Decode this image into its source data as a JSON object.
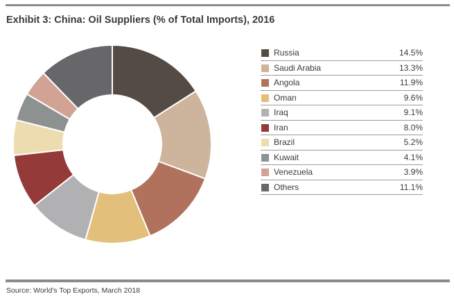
{
  "title": "Exhibit 3: China: Oil Suppliers (% of Total Imports), 2016",
  "source": "Source: World's Top Exports, March 2018",
  "chart_data": {
    "type": "pie",
    "donut": true,
    "title": "Exhibit 3: China: Oil Suppliers (% of Total Imports), 2016",
    "legend_position": "right",
    "categories": [
      "Russia",
      "Saudi Arabia",
      "Angola",
      "Oman",
      "Iraq",
      "Iran",
      "Brazil",
      "Kuwait",
      "Venezuela",
      "Others"
    ],
    "values": [
      14.5,
      13.3,
      11.9,
      9.6,
      9.1,
      8.0,
      5.2,
      4.1,
      3.9,
      11.1
    ],
    "value_labels": [
      "14.5%",
      "13.3%",
      "11.9%",
      "9.6%",
      "9.1%",
      "8.0%",
      "5.2%",
      "4.1%",
      "3.9%",
      "11.1%"
    ],
    "colors": [
      "#544b45",
      "#cdb49c",
      "#b0725c",
      "#e2c07c",
      "#b1b1b3",
      "#943b3a",
      "#eedcb1",
      "#8e9191",
      "#d2a294",
      "#67676a"
    ]
  }
}
